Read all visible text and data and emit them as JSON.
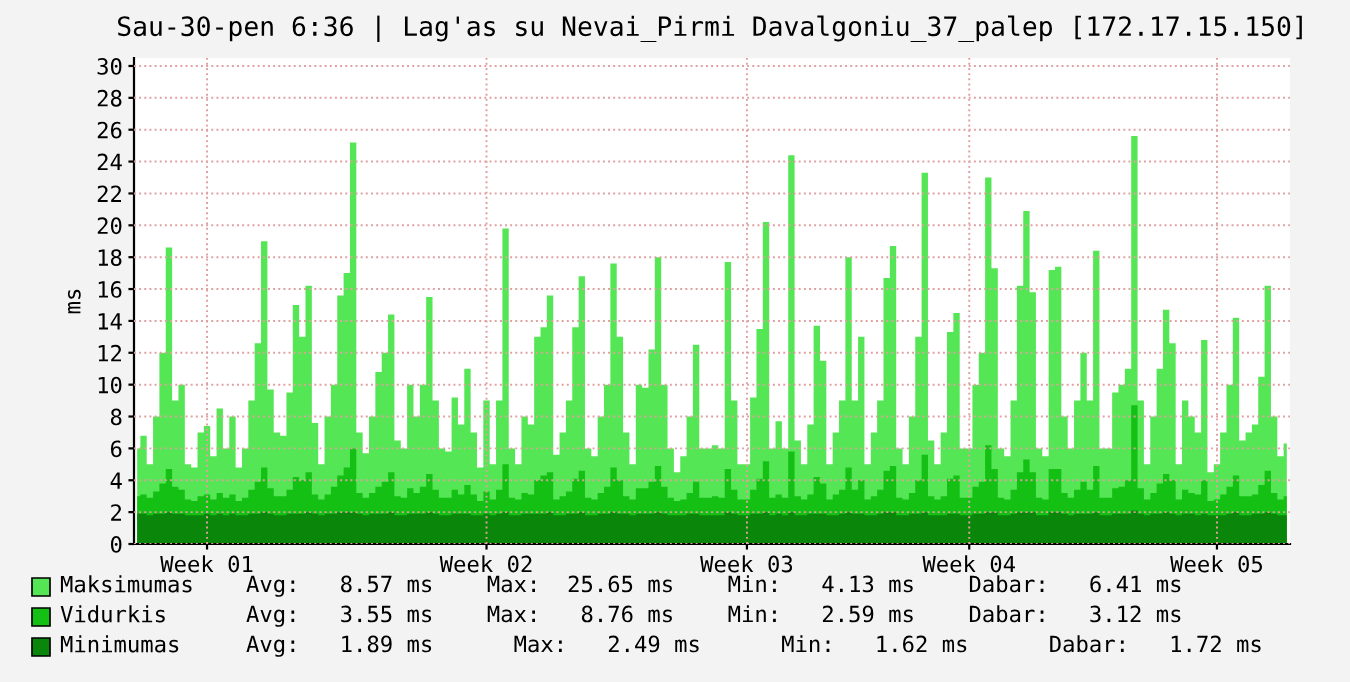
{
  "chart_data": {
    "type": "area",
    "title": "Sau-30-pen 6:36 | Lag'as su Nevai_Pirmi Davalgoniu_37_palep [172.17.15.150]",
    "ylabel": "ms",
    "series": [
      {
        "name": "Maksimumas",
        "color": "#55e655",
        "values": [
          6.0,
          6.8,
          5.0,
          8.0,
          12.0,
          18.6,
          9.0,
          10.0,
          5.0,
          4.8,
          7.0,
          7.4,
          5.5,
          8.5,
          6.0,
          8.0,
          4.8,
          6.0,
          9.0,
          12.6,
          19.0,
          9.7,
          7.0,
          6.8,
          9.5,
          15.0,
          13.0,
          16.2,
          7.6,
          5.0,
          8.0,
          10.0,
          15.6,
          17.0,
          25.2,
          7.0,
          5.7,
          8.0,
          10.8,
          12.0,
          14.4,
          6.5,
          6.0,
          10.0,
          8.0,
          10.0,
          15.5,
          9.0,
          6.0,
          5.8,
          9.2,
          7.5,
          11.0,
          7.0,
          4.8,
          9.0,
          5.0,
          9.0,
          19.8,
          6.0,
          5.0,
          8.0,
          7.5,
          13.0,
          13.6,
          15.6,
          5.6,
          7.0,
          9.0,
          13.6,
          16.8,
          6.0,
          5.5,
          8.0,
          10.0,
          17.6,
          13.0,
          7.0,
          5.0,
          10.0,
          9.8,
          12.2,
          18.0,
          10.0,
          6.0,
          4.5,
          5.5,
          8.0,
          12.5,
          6.0,
          6.0,
          6.2,
          6.0,
          17.7,
          9.0,
          5.0,
          5.0,
          9.2,
          13.5,
          20.2,
          6.0,
          7.7,
          6.0,
          24.4,
          6.5,
          5.0,
          7.5,
          13.7,
          11.5,
          5.0,
          7.0,
          9.0,
          18.0,
          9.0,
          13.0,
          5.0,
          7.0,
          9.0,
          16.7,
          18.7,
          6.0,
          5.0,
          8.0,
          13.0,
          23.3,
          6.5,
          5.0,
          7.0,
          13.3,
          14.5,
          6.0,
          6.0,
          10.0,
          12.0,
          23.0,
          17.3,
          6.0,
          5.5,
          9.0,
          16.2,
          20.9,
          15.8,
          6.0,
          5.5,
          17.2,
          17.4,
          8.0,
          6.0,
          9.0,
          12.0,
          9.0,
          18.4,
          6.0,
          6.0,
          9.5,
          10.0,
          11.0,
          25.6,
          9.0,
          5.0,
          8.0,
          11.0,
          14.7,
          12.6,
          5.0,
          9.0,
          8.0,
          7.0,
          12.8,
          4.5,
          5.0,
          7.0,
          10.0,
          14.2,
          6.5,
          7.0,
          7.5,
          10.5,
          16.2,
          8.0,
          5.5,
          6.3
        ]
      },
      {
        "name": "Vidurkis",
        "color": "#14c014",
        "values": [
          3.0,
          3.1,
          2.9,
          3.3,
          3.8,
          4.7,
          3.6,
          3.4,
          2.8,
          2.7,
          3.0,
          3.1,
          2.8,
          3.2,
          2.9,
          3.1,
          2.7,
          2.9,
          3.4,
          3.9,
          4.8,
          3.5,
          3.0,
          3.0,
          3.4,
          4.2,
          4.0,
          4.5,
          3.1,
          2.8,
          3.1,
          3.6,
          4.3,
          4.8,
          6.0,
          3.2,
          2.9,
          3.2,
          3.6,
          3.9,
          4.5,
          3.0,
          2.9,
          3.5,
          3.2,
          3.6,
          4.4,
          3.4,
          2.9,
          2.9,
          3.4,
          3.1,
          3.7,
          3.1,
          2.7,
          3.3,
          2.8,
          3.4,
          5.0,
          2.9,
          2.8,
          3.2,
          3.1,
          4.0,
          4.3,
          4.5,
          2.8,
          3.0,
          3.3,
          4.1,
          4.6,
          2.9,
          2.8,
          3.2,
          3.6,
          4.8,
          4.0,
          3.0,
          2.8,
          3.5,
          3.5,
          3.9,
          4.9,
          3.6,
          2.9,
          2.7,
          2.8,
          3.2,
          3.9,
          2.9,
          2.9,
          3.0,
          2.9,
          4.7,
          3.4,
          2.8,
          2.8,
          3.4,
          4.1,
          5.2,
          2.9,
          3.1,
          2.9,
          5.8,
          3.0,
          2.8,
          3.1,
          4.2,
          3.8,
          2.8,
          3.1,
          3.4,
          4.8,
          3.4,
          4.0,
          2.8,
          3.0,
          3.4,
          4.6,
          4.9,
          2.9,
          2.8,
          3.2,
          4.0,
          5.6,
          3.0,
          2.8,
          3.0,
          4.1,
          4.3,
          2.9,
          2.9,
          3.6,
          3.9,
          6.2,
          4.7,
          2.9,
          2.8,
          3.4,
          4.5,
          5.3,
          4.5,
          2.9,
          2.8,
          4.7,
          4.7,
          3.2,
          2.9,
          3.4,
          3.9,
          3.4,
          4.9,
          2.9,
          2.9,
          3.5,
          3.6,
          4.0,
          8.7,
          3.5,
          2.8,
          3.2,
          3.8,
          4.4,
          4.0,
          2.8,
          3.4,
          3.2,
          3.1,
          4.0,
          2.7,
          2.8,
          3.1,
          3.6,
          4.3,
          3.0,
          3.0,
          3.1,
          3.7,
          4.6,
          3.2,
          2.8,
          3.0
        ]
      },
      {
        "name": "Minimumas",
        "color": "#0a870a",
        "values": [
          1.9,
          1.9,
          1.8,
          1.9,
          1.9,
          2.0,
          1.9,
          1.9,
          1.8,
          1.8,
          1.8,
          1.9,
          1.8,
          1.9,
          1.8,
          1.9,
          1.8,
          1.8,
          1.9,
          1.9,
          2.0,
          1.9,
          1.8,
          1.8,
          1.9,
          1.9,
          1.9,
          2.0,
          1.9,
          1.8,
          1.9,
          1.9,
          2.0,
          2.0,
          2.0,
          1.9,
          1.8,
          1.9,
          1.9,
          1.9,
          2.0,
          1.8,
          1.8,
          1.9,
          1.9,
          1.9,
          2.0,
          1.9,
          1.8,
          1.8,
          1.9,
          1.9,
          1.9,
          1.8,
          1.8,
          1.9,
          1.8,
          1.9,
          2.0,
          1.8,
          1.8,
          1.9,
          1.9,
          1.9,
          1.9,
          2.0,
          1.8,
          1.8,
          1.9,
          1.9,
          2.0,
          1.8,
          1.8,
          1.9,
          1.9,
          2.0,
          1.9,
          1.9,
          1.8,
          1.9,
          1.9,
          1.9,
          2.0,
          1.9,
          1.8,
          1.8,
          1.8,
          1.9,
          1.9,
          1.8,
          1.8,
          1.8,
          1.8,
          2.0,
          1.9,
          1.8,
          1.8,
          1.9,
          1.9,
          2.0,
          1.8,
          1.9,
          1.8,
          2.0,
          1.8,
          1.8,
          1.9,
          1.9,
          1.9,
          1.8,
          1.8,
          1.9,
          2.0,
          1.9,
          1.9,
          1.8,
          1.8,
          1.9,
          2.0,
          2.0,
          1.8,
          1.8,
          1.9,
          1.9,
          2.0,
          1.8,
          1.8,
          1.8,
          1.9,
          1.9,
          1.8,
          1.8,
          1.9,
          1.9,
          2.0,
          2.0,
          1.8,
          1.8,
          1.9,
          2.0,
          2.0,
          2.0,
          1.8,
          1.8,
          2.0,
          2.0,
          1.9,
          1.8,
          1.9,
          1.9,
          1.9,
          2.0,
          1.8,
          1.8,
          1.9,
          1.9,
          1.9,
          2.1,
          1.9,
          1.8,
          1.9,
          1.9,
          2.0,
          1.9,
          1.8,
          1.9,
          1.9,
          1.8,
          1.9,
          1.8,
          1.8,
          1.8,
          1.9,
          2.0,
          1.8,
          1.8,
          1.9,
          1.9,
          2.0,
          1.9,
          1.8,
          1.8
        ]
      }
    ],
    "categories": [
      null,
      null,
      null,
      null,
      null,
      null,
      null,
      null,
      null,
      null,
      null,
      "Week 01",
      null,
      null,
      null,
      null,
      null,
      null,
      null,
      null,
      null,
      null,
      null,
      null,
      null,
      null,
      null,
      null,
      null,
      null,
      null,
      null,
      null,
      null,
      null,
      null,
      null,
      null,
      null,
      null,
      null,
      null,
      null,
      null,
      null,
      null,
      null,
      null,
      null,
      null,
      null,
      null,
      null,
      null,
      null,
      "Week 02",
      null,
      null,
      null,
      null,
      null,
      null,
      null,
      null,
      null,
      null,
      null,
      null,
      null,
      null,
      null,
      null,
      null,
      null,
      null,
      null,
      null,
      null,
      null,
      null,
      null,
      null,
      null,
      null,
      null,
      null,
      null,
      null,
      null,
      null,
      null,
      null,
      null,
      null,
      null,
      null,
      "Week 03",
      null,
      null,
      null,
      null,
      null,
      null,
      null,
      null,
      null,
      null,
      null,
      null,
      null,
      null,
      null,
      null,
      null,
      null,
      null,
      null,
      null,
      null,
      null,
      null,
      null,
      null,
      null,
      null,
      null,
      null,
      null,
      null,
      null,
      null,
      "Week 04",
      null,
      null,
      null,
      null,
      null,
      null,
      null,
      null,
      null,
      null,
      null,
      null,
      null,
      null,
      null,
      null,
      null,
      null,
      null,
      null,
      null,
      null,
      null,
      null,
      null,
      null,
      null,
      null,
      null,
      null,
      null,
      null,
      null,
      null,
      null,
      null,
      null,
      null,
      "Week 05",
      null,
      null,
      null,
      null,
      null,
      null,
      null,
      null,
      null,
      null,
      null
    ],
    "ylim": [
      0,
      30.5
    ],
    "yticks": [
      0,
      2,
      4,
      6,
      8,
      10,
      12,
      14,
      16,
      18,
      20,
      22,
      24,
      26,
      28,
      30
    ],
    "grid": true,
    "legend": "bottom",
    "annotations": [
      "Avg:   8.57 ms    Max:  25.65 ms    Min:   4.13 ms    Dabar:   6.41 ms",
      "Avg:   3.55 ms    Max:   8.76 ms    Min:   2.59 ms    Dabar:   3.12 ms",
      "Avg:   1.89 ms      Max:   2.49 ms      Min:   1.62 ms      Dabar:   1.72 ms"
    ]
  }
}
